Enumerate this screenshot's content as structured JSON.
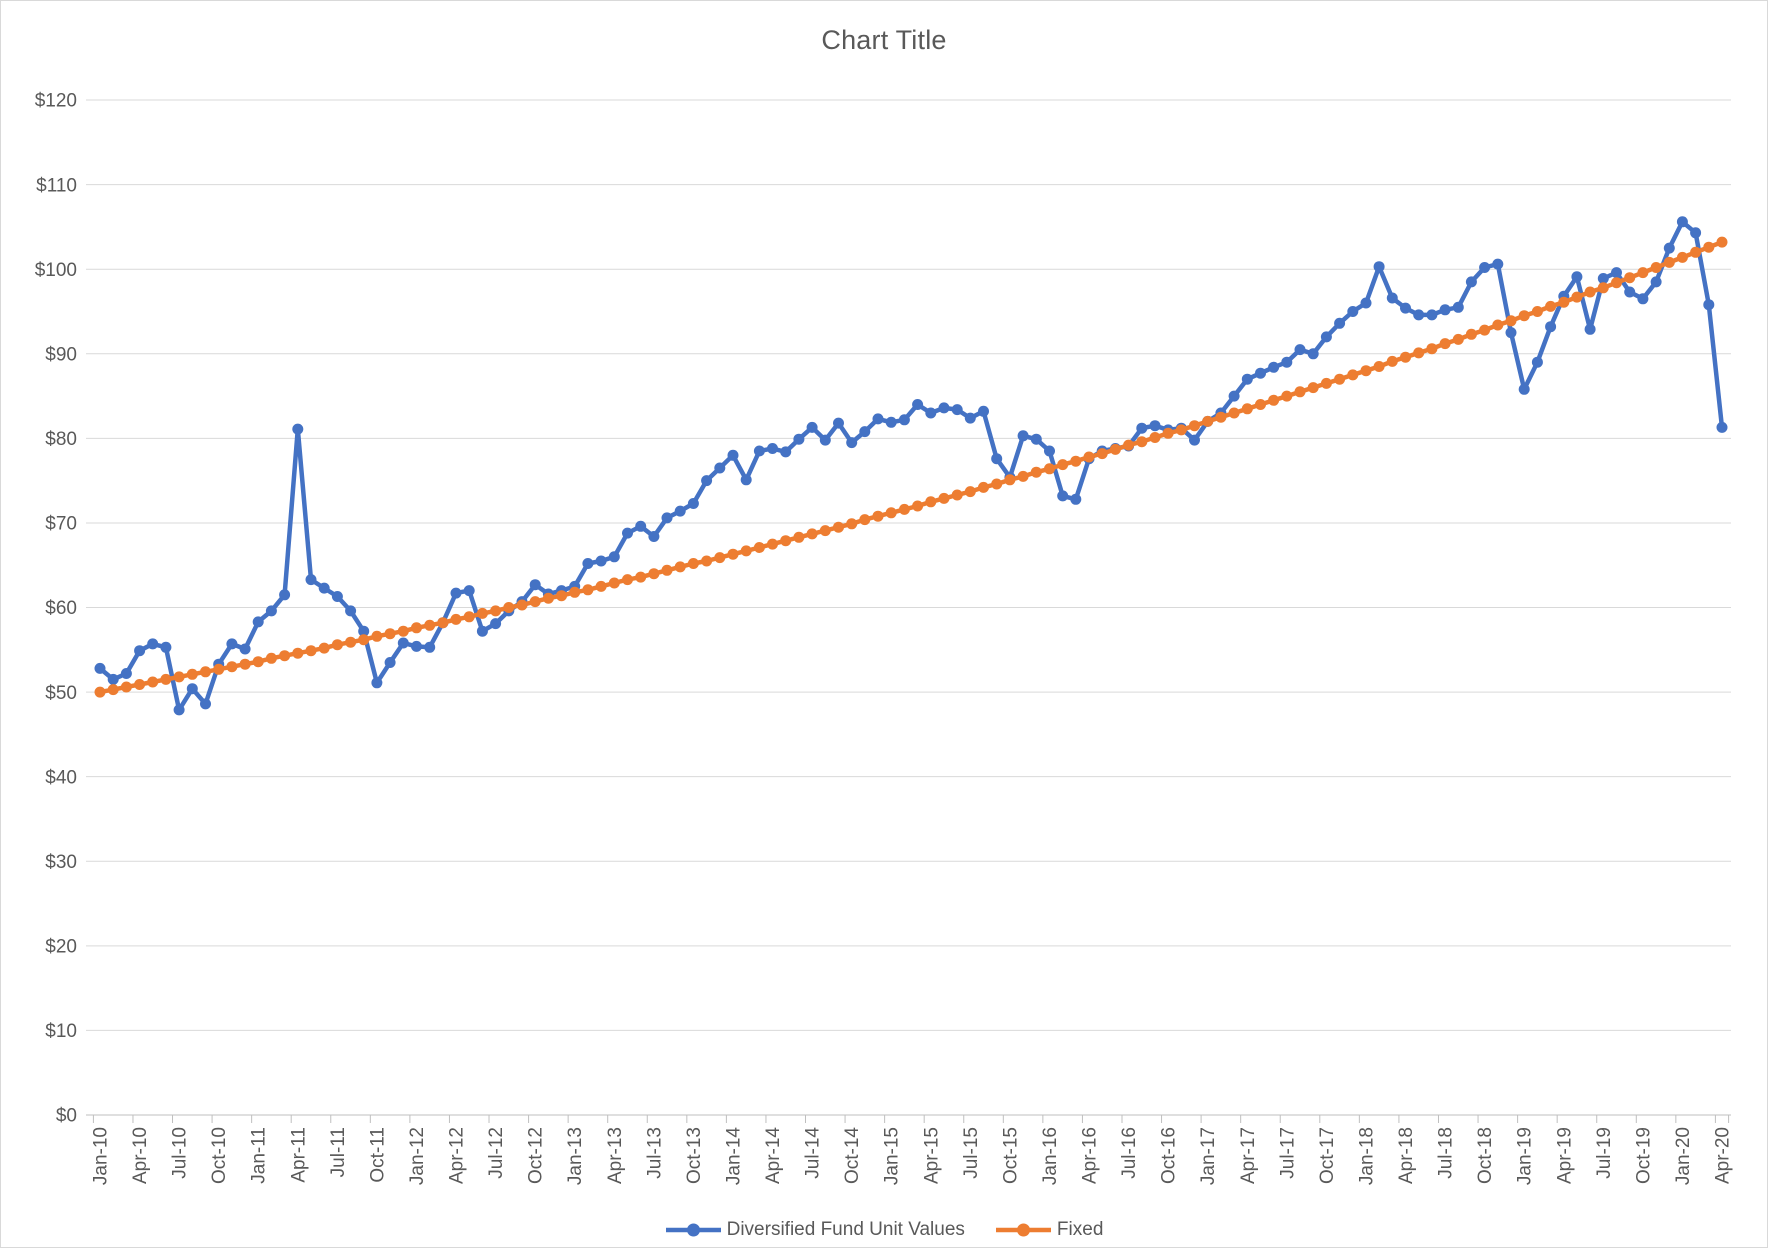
{
  "chart_data": {
    "type": "line",
    "title": "Chart Title",
    "xlabel": "",
    "ylabel": "",
    "ylim": [
      0,
      120
    ],
    "y_step": 10,
    "grid": "horizontal",
    "legend_position": "bottom",
    "y_tick_labels": [
      "$0",
      "$10",
      "$20",
      "$30",
      "$40",
      "$50",
      "$60",
      "$70",
      "$80",
      "$90",
      "$100",
      "$110",
      "$120"
    ],
    "x_tick_labels": [
      "Jan-10",
      "Apr-10",
      "Jul-10",
      "Oct-10",
      "Jan-11",
      "Apr-11",
      "Jul-11",
      "Oct-11",
      "Jan-12",
      "Apr-12",
      "Jul-12",
      "Oct-12",
      "Jan-13",
      "Apr-13",
      "Jul-13",
      "Oct-13",
      "Jan-14",
      "Apr-14",
      "Jul-14",
      "Oct-14",
      "Jan-15",
      "Apr-15",
      "Jul-15",
      "Oct-15",
      "Jan-16",
      "Apr-16",
      "Jul-16",
      "Oct-16",
      "Jan-17",
      "Apr-17",
      "Jul-17",
      "Oct-17",
      "Jan-18",
      "Apr-18",
      "Jul-18",
      "Oct-18",
      "Jan-19",
      "Apr-19",
      "Jul-19",
      "Oct-19",
      "Jan-20",
      "Apr-20"
    ],
    "x": [
      "Jan-10",
      "Feb-10",
      "Mar-10",
      "Apr-10",
      "May-10",
      "Jun-10",
      "Jul-10",
      "Aug-10",
      "Sep-10",
      "Oct-10",
      "Nov-10",
      "Dec-10",
      "Jan-11",
      "Feb-11",
      "Mar-11",
      "Apr-11",
      "May-11",
      "Jun-11",
      "Jul-11",
      "Aug-11",
      "Sep-11",
      "Oct-11",
      "Nov-11",
      "Dec-11",
      "Jan-12",
      "Feb-12",
      "Mar-12",
      "Apr-12",
      "May-12",
      "Jun-12",
      "Jul-12",
      "Aug-12",
      "Sep-12",
      "Oct-12",
      "Nov-12",
      "Dec-12",
      "Jan-13",
      "Feb-13",
      "Mar-13",
      "Apr-13",
      "May-13",
      "Jun-13",
      "Jul-13",
      "Aug-13",
      "Sep-13",
      "Oct-13",
      "Nov-13",
      "Dec-13",
      "Jan-14",
      "Feb-14",
      "Mar-14",
      "Apr-14",
      "May-14",
      "Jun-14",
      "Jul-14",
      "Aug-14",
      "Sep-14",
      "Oct-14",
      "Nov-14",
      "Dec-14",
      "Jan-15",
      "Feb-15",
      "Mar-15",
      "Apr-15",
      "May-15",
      "Jun-15",
      "Jul-15",
      "Aug-15",
      "Sep-15",
      "Oct-15",
      "Nov-15",
      "Dec-15",
      "Jan-16",
      "Feb-16",
      "Mar-16",
      "Apr-16",
      "May-16",
      "Jun-16",
      "Jul-16",
      "Aug-16",
      "Sep-16",
      "Oct-16",
      "Nov-16",
      "Dec-16",
      "Jan-17",
      "Feb-17",
      "Mar-17",
      "Apr-17",
      "May-17",
      "Jun-17",
      "Jul-17",
      "Aug-17",
      "Sep-17",
      "Oct-17",
      "Nov-17",
      "Dec-17",
      "Jan-18",
      "Feb-18",
      "Mar-18",
      "Apr-18",
      "May-18",
      "Jun-18",
      "Jul-18",
      "Aug-18",
      "Sep-18",
      "Oct-18",
      "Nov-18",
      "Dec-18",
      "Jan-19",
      "Feb-19",
      "Mar-19",
      "Apr-19",
      "May-19",
      "Jun-19",
      "Jul-19",
      "Aug-19",
      "Sep-19",
      "Oct-19",
      "Nov-19",
      "Dec-19",
      "Jan-20",
      "Feb-20",
      "Mar-20",
      "Apr-20"
    ],
    "series": [
      {
        "name": "Diversified Fund Unit Values",
        "color": "#4472C4",
        "marker": "circle",
        "values": [
          52.8,
          51.5,
          52.2,
          54.9,
          55.7,
          55.3,
          47.9,
          50.4,
          48.6,
          53.3,
          55.7,
          55.1,
          58.3,
          59.6,
          61.5,
          81.1,
          63.3,
          62.3,
          61.3,
          59.6,
          57.2,
          51.1,
          53.5,
          55.8,
          55.4,
          55.3,
          58.2,
          61.7,
          62.0,
          57.2,
          58.1,
          59.6,
          60.7,
          62.7,
          61.6,
          62.0,
          62.5,
          65.2,
          65.5,
          66.0,
          68.8,
          69.6,
          68.4,
          70.6,
          71.4,
          72.3,
          75.0,
          76.5,
          78.0,
          75.1,
          78.5,
          78.8,
          78.4,
          79.9,
          81.3,
          79.8,
          81.8,
          79.5,
          80.8,
          82.3,
          81.9,
          82.2,
          84.0,
          83.0,
          83.6,
          83.4,
          82.4,
          83.2,
          77.6,
          75.4,
          80.3,
          79.9,
          78.5,
          73.2,
          72.8,
          77.6,
          78.5,
          78.8,
          79.1,
          81.2,
          81.5,
          81.0,
          81.2,
          79.8,
          82.0,
          83.0,
          85.0,
          87.0,
          87.7,
          88.4,
          89.0,
          90.5,
          90.0,
          92.0,
          93.6,
          95.0,
          96.0,
          100.3,
          96.6,
          95.4,
          94.6,
          94.6,
          95.2,
          95.5,
          98.5,
          100.2,
          100.6,
          92.5,
          85.8,
          89.0,
          93.2,
          96.8,
          99.1,
          92.9,
          98.9,
          99.6,
          97.3,
          96.5,
          98.5,
          102.5,
          105.6,
          104.3,
          95.8,
          81.3
        ]
      },
      {
        "name": "Fixed",
        "color": "#ED7D31",
        "marker": "circle",
        "values": [
          50.0,
          50.3,
          50.6,
          50.9,
          51.2,
          51.5,
          51.8,
          52.1,
          52.4,
          52.7,
          53.0,
          53.3,
          53.6,
          54.0,
          54.3,
          54.6,
          54.9,
          55.2,
          55.6,
          55.9,
          56.2,
          56.6,
          56.9,
          57.2,
          57.6,
          57.9,
          58.2,
          58.6,
          58.9,
          59.3,
          59.6,
          60.0,
          60.3,
          60.7,
          61.1,
          61.4,
          61.8,
          62.1,
          62.5,
          62.9,
          63.3,
          63.6,
          64.0,
          64.4,
          64.8,
          65.2,
          65.5,
          65.9,
          66.3,
          66.7,
          67.1,
          67.5,
          67.9,
          68.3,
          68.7,
          69.1,
          69.5,
          69.9,
          70.4,
          70.8,
          71.2,
          71.6,
          72.0,
          72.5,
          72.9,
          73.3,
          73.7,
          74.2,
          74.6,
          75.1,
          75.5,
          76.0,
          76.4,
          76.9,
          77.3,
          77.8,
          78.2,
          78.7,
          79.2,
          79.6,
          80.1,
          80.6,
          81.0,
          81.5,
          82.0,
          82.5,
          83.0,
          83.5,
          84.0,
          84.5,
          85.0,
          85.5,
          86.0,
          86.5,
          87.0,
          87.5,
          88.0,
          88.5,
          89.1,
          89.6,
          90.1,
          90.6,
          91.2,
          91.7,
          92.3,
          92.8,
          93.4,
          93.9,
          94.5,
          95.0,
          95.6,
          96.1,
          96.7,
          97.3,
          97.8,
          98.4,
          99.0,
          99.6,
          100.2,
          100.8,
          101.4,
          102.0,
          102.6,
          103.2
        ]
      }
    ],
    "colors": {
      "gridline": "#D9D9D9",
      "axis": "#BFBFBF",
      "tick_label": "#595959",
      "title": "#595959",
      "background": "#FFFFFF"
    }
  }
}
